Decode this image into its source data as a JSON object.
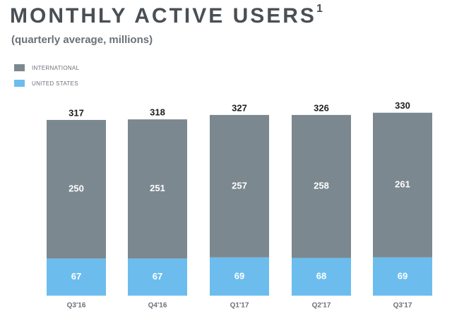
{
  "header": {
    "title": "MONTHLY ACTIVE USERS",
    "footnote": "1",
    "subtitle": "(quarterly average, millions)"
  },
  "colors": {
    "international": "#7b8890",
    "united_states": "#6cbdee",
    "text_dark": "#1e1e1e",
    "text_light": "#ffffff",
    "axis_label": "#6b7178"
  },
  "chart_data": {
    "type": "bar",
    "stacked": true,
    "categories": [
      "Q3'16",
      "Q4'16",
      "Q1'17",
      "Q2'17",
      "Q3'17"
    ],
    "series": [
      {
        "name": "UNITED STATES",
        "values": [
          67,
          67,
          69,
          68,
          69
        ]
      },
      {
        "name": "INTERNATIONAL",
        "values": [
          250,
          251,
          257,
          258,
          261
        ]
      }
    ],
    "totals": [
      317,
      318,
      327,
      326,
      330
    ],
    "legend_position": "top-left",
    "grid": false
  }
}
